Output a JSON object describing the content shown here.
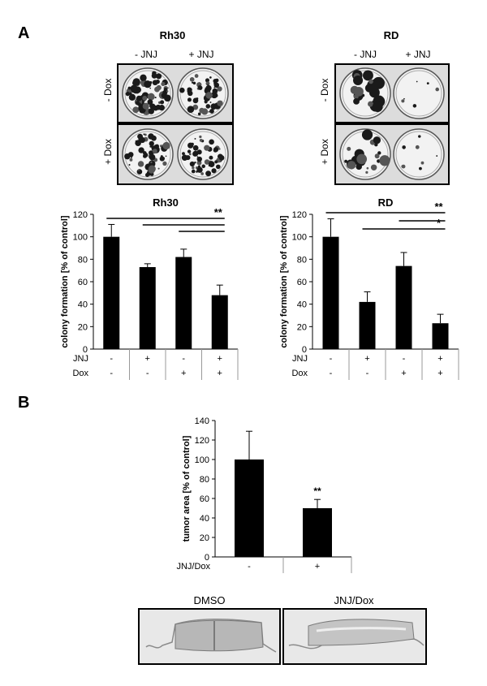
{
  "panels": {
    "a": "A",
    "b": "B"
  },
  "plates": {
    "rh30": {
      "title": "Rh30",
      "col_left": "- JNJ",
      "col_right": "+ JNJ",
      "row_top": "- Dox",
      "row_bottom": "+ Dox"
    },
    "rd": {
      "title": "RD",
      "col_left": "- JNJ",
      "col_right": "+ JNJ",
      "row_top": "- Dox",
      "row_bottom": "+ Dox"
    }
  },
  "histology": {
    "left_label": "DMSO",
    "right_label": "JNJ/Dox"
  },
  "chart_data": [
    {
      "type": "bar",
      "title": "Rh30",
      "ylabel": "colony formation [% of control]",
      "ylim": [
        0,
        120
      ],
      "yticks": [
        0,
        20,
        40,
        60,
        80,
        100,
        120
      ],
      "values": [
        100,
        73,
        82,
        48
      ],
      "errors": [
        11,
        3,
        7,
        9
      ],
      "condition_rows": [
        {
          "label": "JNJ",
          "values": [
            "-",
            "+",
            "-",
            "+"
          ]
        },
        {
          "label": "Dox",
          "values": [
            "-",
            "-",
            "+",
            "+"
          ]
        }
      ],
      "significance": [
        {
          "from": [
            0,
            1,
            2
          ],
          "to": 3,
          "label": "**"
        }
      ],
      "color": "#000000"
    },
    {
      "type": "bar",
      "title": "RD",
      "ylabel": "colony formation [% of control]",
      "ylim": [
        0,
        120
      ],
      "yticks": [
        0,
        20,
        40,
        60,
        80,
        100,
        120
      ],
      "values": [
        100,
        42,
        74,
        23
      ],
      "errors": [
        16,
        9,
        12,
        8
      ],
      "condition_rows": [
        {
          "label": "JNJ",
          "values": [
            "-",
            "+",
            "-",
            "+"
          ]
        },
        {
          "label": "Dox",
          "values": [
            "-",
            "-",
            "+",
            "+"
          ]
        }
      ],
      "significance": [
        {
          "from": [
            0,
            2
          ],
          "to": 3,
          "label": "**"
        },
        {
          "from": [
            1
          ],
          "to": 3,
          "label": "*"
        }
      ],
      "color": "#000000"
    },
    {
      "type": "bar",
      "title": "",
      "ylabel": "tumor area [% of control]",
      "ylim": [
        0,
        140
      ],
      "yticks": [
        0,
        20,
        40,
        60,
        80,
        100,
        120,
        140
      ],
      "values": [
        100,
        50
      ],
      "errors": [
        29,
        9
      ],
      "condition_rows": [
        {
          "label": "JNJ/Dox",
          "values": [
            "-",
            "+"
          ]
        }
      ],
      "bar_labels": [
        "",
        "**"
      ],
      "color": "#000000"
    }
  ]
}
